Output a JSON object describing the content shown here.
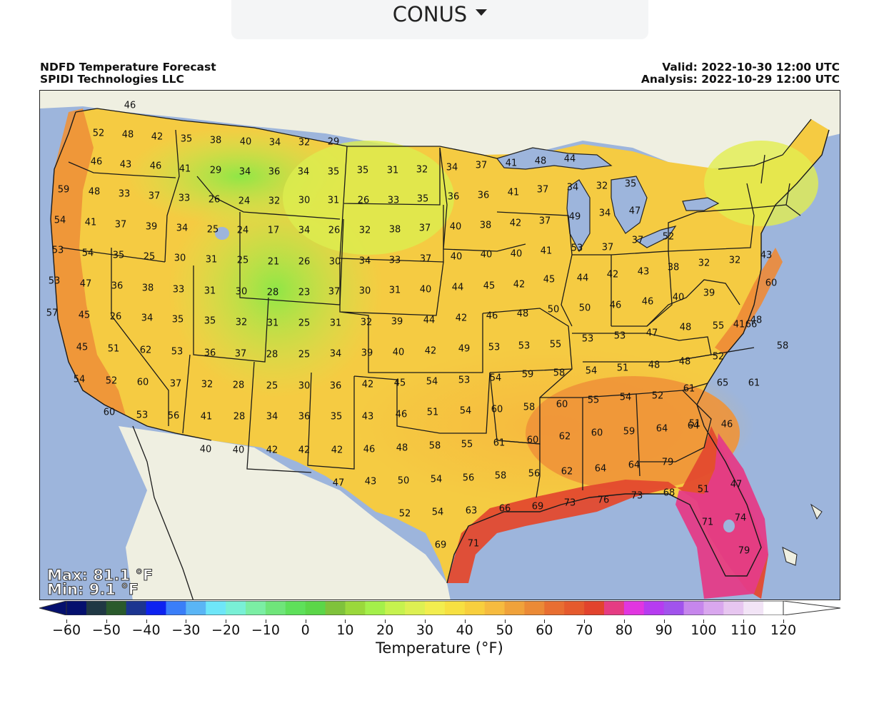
{
  "region_select": {
    "value": "CONUS",
    "icon": "caret-down-icon"
  },
  "header": {
    "title": "NDFD Temperature Forecast",
    "credit": "SPIDI Technologies LLC",
    "valid": "Valid: 2022-10-30 12:00 UTC",
    "analysis": "Analysis: 2022-10-29 12:00 UTC"
  },
  "stats": {
    "max": "Max: 81.1 °F",
    "min": "Min: 9.1 °F"
  },
  "colorbar": {
    "title": "Temperature (°F)",
    "tick_labels": [
      "−60",
      "−50",
      "−40",
      "−30",
      "−20",
      "−10",
      "0",
      "10",
      "20",
      "30",
      "40",
      "50",
      "60",
      "70",
      "80",
      "90",
      "100",
      "110",
      "120"
    ],
    "range": [
      -65,
      125
    ],
    "colors": [
      "#05106e",
      "#203844",
      "#2a5a2c",
      "#1c3590",
      "#0d22f0",
      "#3a7ef8",
      "#5ab5f5",
      "#6ee6f8",
      "#79f0d6",
      "#7beea4",
      "#6fe57a",
      "#5ee05a",
      "#5bd648",
      "#7fc23b",
      "#9ad83b",
      "#a4f04a",
      "#c6f24e",
      "#ddf052",
      "#f2ed4e",
      "#f7e041",
      "#f8cf3d",
      "#f6bb3f",
      "#f0a23a",
      "#eb8a36",
      "#e86e31",
      "#e55a2d",
      "#e2432d",
      "#e53c83",
      "#e136e0",
      "#b63cf0",
      "#a153ec",
      "#c686ec",
      "#d9a7ee",
      "#e7c6f0",
      "#f2e4f6",
      "#ffffff"
    ]
  },
  "chart_data": {
    "type": "map",
    "title": "NDFD Temperature Forecast",
    "units": "°F",
    "station_values": [
      {
        "t": 46
      },
      {
        "t": 52
      },
      {
        "t": 48
      },
      {
        "t": 42
      },
      {
        "t": 35
      },
      {
        "t": 38
      },
      {
        "t": 40
      },
      {
        "t": 34
      },
      {
        "t": 32
      },
      {
        "t": 29
      },
      {
        "t": 46
      },
      {
        "t": 43
      },
      {
        "t": 46
      },
      {
        "t": 41
      },
      {
        "t": 29
      },
      {
        "t": 34
      },
      {
        "t": 36
      },
      {
        "t": 34
      },
      {
        "t": 35
      },
      {
        "t": 35
      },
      {
        "t": 31
      },
      {
        "t": 32
      },
      {
        "t": 34
      },
      {
        "t": 37
      },
      {
        "t": 41
      },
      {
        "t": 48
      },
      {
        "t": 44
      },
      {
        "t": 59
      },
      {
        "t": 48
      },
      {
        "t": 33
      },
      {
        "t": 37
      },
      {
        "t": 33
      },
      {
        "t": 26
      },
      {
        "t": 24
      },
      {
        "t": 32
      },
      {
        "t": 30
      },
      {
        "t": 31
      },
      {
        "t": 26
      },
      {
        "t": 33
      },
      {
        "t": 35
      },
      {
        "t": 36
      },
      {
        "t": 36
      },
      {
        "t": 41
      },
      {
        "t": 37
      },
      {
        "t": 34
      },
      {
        "t": 32
      },
      {
        "t": 35
      },
      {
        "t": 54
      },
      {
        "t": 41
      },
      {
        "t": 37
      },
      {
        "t": 39
      },
      {
        "t": 34
      },
      {
        "t": 25
      },
      {
        "t": 24
      },
      {
        "t": 17
      },
      {
        "t": 34
      },
      {
        "t": 26
      },
      {
        "t": 32
      },
      {
        "t": 38
      },
      {
        "t": 37
      },
      {
        "t": 40
      },
      {
        "t": 38
      },
      {
        "t": 42
      },
      {
        "t": 37
      },
      {
        "t": 49
      },
      {
        "t": 34
      },
      {
        "t": 47
      },
      {
        "t": 53
      },
      {
        "t": 54
      },
      {
        "t": 35
      },
      {
        "t": 25
      },
      {
        "t": 30
      },
      {
        "t": 31
      },
      {
        "t": 25
      },
      {
        "t": 21
      },
      {
        "t": 26
      },
      {
        "t": 30
      },
      {
        "t": 34
      },
      {
        "t": 33
      },
      {
        "t": 37
      },
      {
        "t": 40
      },
      {
        "t": 40
      },
      {
        "t": 40
      },
      {
        "t": 41
      },
      {
        "t": 53
      },
      {
        "t": 37
      },
      {
        "t": 37
      },
      {
        "t": 52
      },
      {
        "t": 53
      },
      {
        "t": 47
      },
      {
        "t": 36
      },
      {
        "t": 38
      },
      {
        "t": 33
      },
      {
        "t": 31
      },
      {
        "t": 30
      },
      {
        "t": 28
      },
      {
        "t": 23
      },
      {
        "t": 37
      },
      {
        "t": 30
      },
      {
        "t": 31
      },
      {
        "t": 40
      },
      {
        "t": 44
      },
      {
        "t": 45
      },
      {
        "t": 42
      },
      {
        "t": 45
      },
      {
        "t": 44
      },
      {
        "t": 42
      },
      {
        "t": 43
      },
      {
        "t": 38
      },
      {
        "t": 32
      },
      {
        "t": 32
      },
      {
        "t": 43
      },
      {
        "t": 60
      },
      {
        "t": 57
      },
      {
        "t": 45
      },
      {
        "t": 26
      },
      {
        "t": 34
      },
      {
        "t": 35
      },
      {
        "t": 35
      },
      {
        "t": 32
      },
      {
        "t": 31
      },
      {
        "t": 25
      },
      {
        "t": 31
      },
      {
        "t": 32
      },
      {
        "t": 39
      },
      {
        "t": 44
      },
      {
        "t": 42
      },
      {
        "t": 46
      },
      {
        "t": 48
      },
      {
        "t": 50
      },
      {
        "t": 50
      },
      {
        "t": 46
      },
      {
        "t": 46
      },
      {
        "t": 40
      },
      {
        "t": 39
      },
      {
        "t": 41
      },
      {
        "t": 48
      },
      {
        "t": 45
      },
      {
        "t": 51
      },
      {
        "t": 62
      },
      {
        "t": 53
      },
      {
        "t": 36
      },
      {
        "t": 37
      },
      {
        "t": 28
      },
      {
        "t": 25
      },
      {
        "t": 34
      },
      {
        "t": 39
      },
      {
        "t": 40
      },
      {
        "t": 42
      },
      {
        "t": 49
      },
      {
        "t": 53
      },
      {
        "t": 53
      },
      {
        "t": 55
      },
      {
        "t": 53
      },
      {
        "t": 53
      },
      {
        "t": 47
      },
      {
        "t": 48
      },
      {
        "t": 55
      },
      {
        "t": 66
      },
      {
        "t": 58
      },
      {
        "t": 54
      },
      {
        "t": 52
      },
      {
        "t": 60
      },
      {
        "t": 37
      },
      {
        "t": 32
      },
      {
        "t": 28
      },
      {
        "t": 25
      },
      {
        "t": 30
      },
      {
        "t": 36
      },
      {
        "t": 42
      },
      {
        "t": 45
      },
      {
        "t": 54
      },
      {
        "t": 53
      },
      {
        "t": 54
      },
      {
        "t": 59
      },
      {
        "t": 58
      },
      {
        "t": 54
      },
      {
        "t": 51
      },
      {
        "t": 48
      },
      {
        "t": 48
      },
      {
        "t": 52
      },
      {
        "t": 65
      },
      {
        "t": 61
      },
      {
        "t": 60
      },
      {
        "t": 53
      },
      {
        "t": 56
      },
      {
        "t": 41
      },
      {
        "t": 28
      },
      {
        "t": 34
      },
      {
        "t": 36
      },
      {
        "t": 35
      },
      {
        "t": 43
      },
      {
        "t": 46
      },
      {
        "t": 51
      },
      {
        "t": 54
      },
      {
        "t": 60
      },
      {
        "t": 58
      },
      {
        "t": 60
      },
      {
        "t": 55
      },
      {
        "t": 54
      },
      {
        "t": 52
      },
      {
        "t": 61
      },
      {
        "t": 51
      },
      {
        "t": 40
      },
      {
        "t": 40
      },
      {
        "t": 42
      },
      {
        "t": 42
      },
      {
        "t": 42
      },
      {
        "t": 46
      },
      {
        "t": 48
      },
      {
        "t": 58
      },
      {
        "t": 55
      },
      {
        "t": 61
      },
      {
        "t": 60
      },
      {
        "t": 62
      },
      {
        "t": 60
      },
      {
        "t": 59
      },
      {
        "t": 64
      },
      {
        "t": 64
      },
      {
        "t": 46
      },
      {
        "t": 47
      },
      {
        "t": 43
      },
      {
        "t": 50
      },
      {
        "t": 54
      },
      {
        "t": 56
      },
      {
        "t": 58
      },
      {
        "t": 56
      },
      {
        "t": 62
      },
      {
        "t": 64
      },
      {
        "t": 64
      },
      {
        "t": 79
      },
      {
        "t": 47
      },
      {
        "t": 52
      },
      {
        "t": 54
      },
      {
        "t": 63
      },
      {
        "t": 66
      },
      {
        "t": 69
      },
      {
        "t": 73
      },
      {
        "t": 76
      },
      {
        "t": 73
      },
      {
        "t": 68
      },
      {
        "t": 51
      },
      {
        "t": 69
      },
      {
        "t": 71
      },
      {
        "t": 71
      },
      {
        "t": 74
      },
      {
        "t": 79
      }
    ]
  }
}
